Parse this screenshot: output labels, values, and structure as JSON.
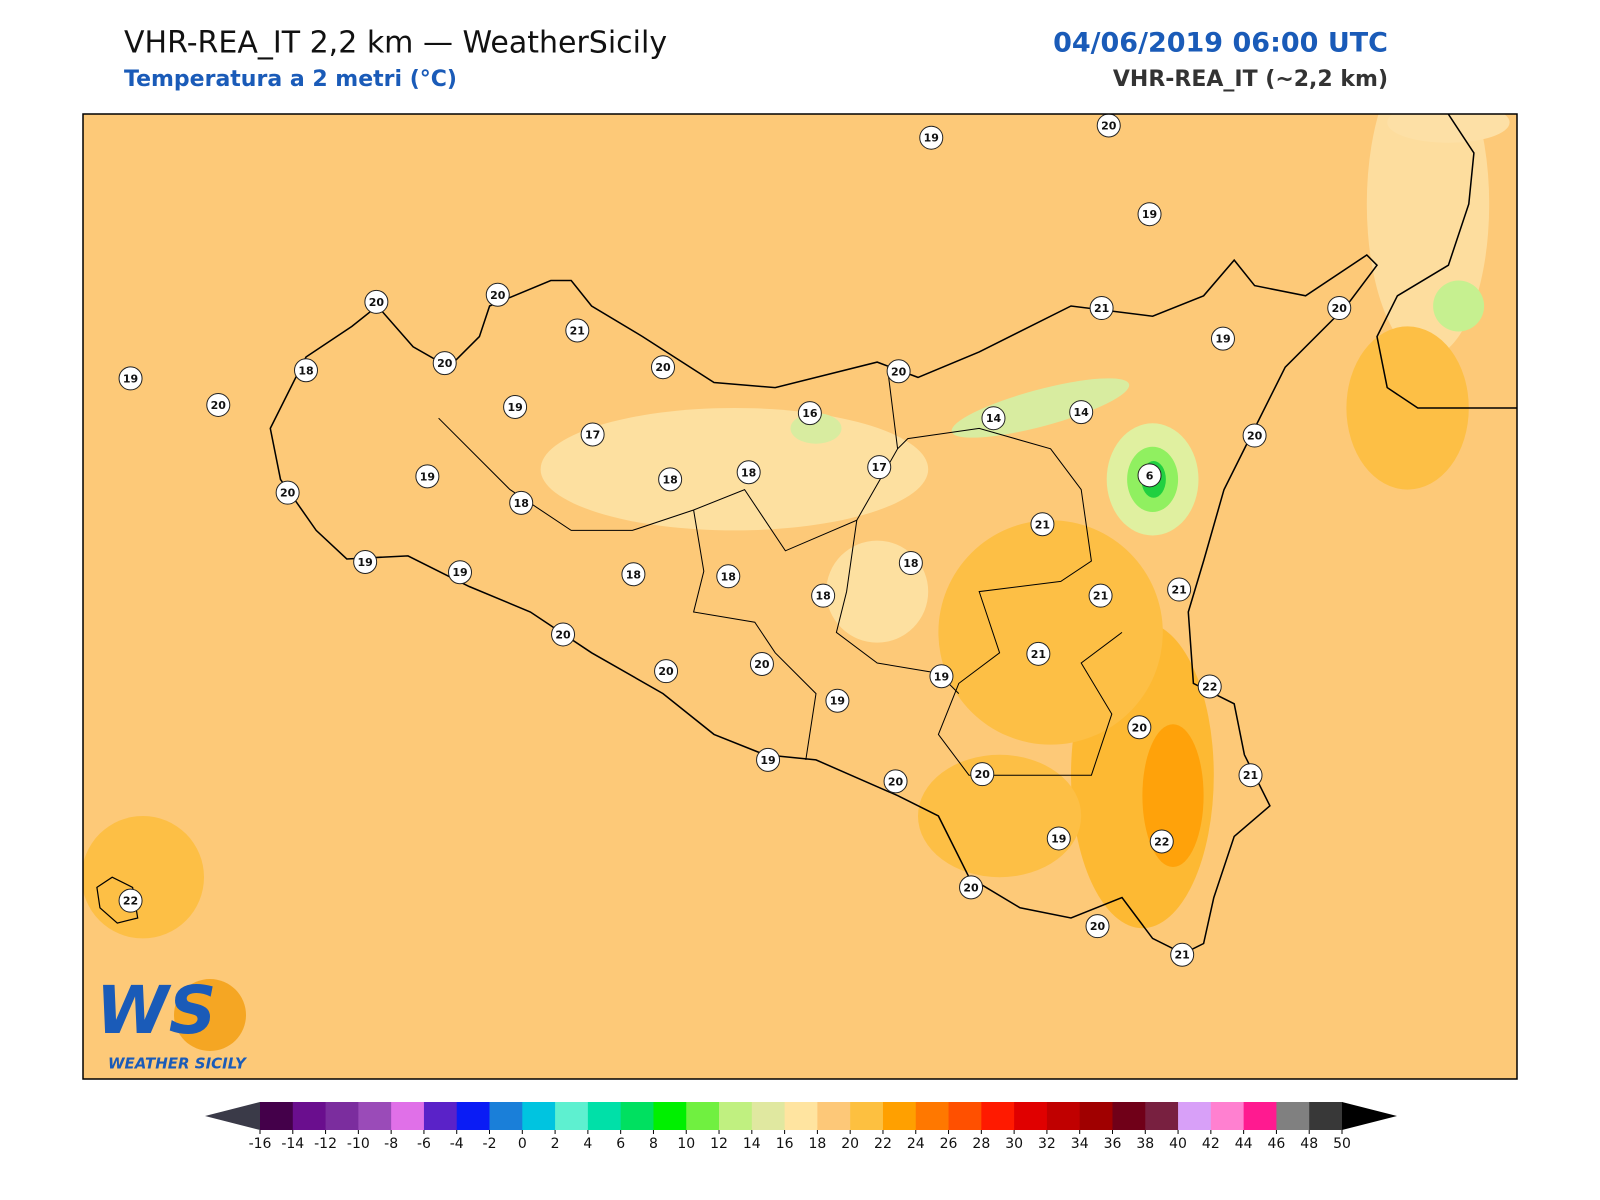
{
  "header": {
    "title": "VHR-REA_IT 2,2 km — WeatherSicily",
    "subtitle": "Temperatura a 2 metri (°C)",
    "datetime": "04/06/2019 06:00 UTC",
    "model": "VHR-REA_IT (~2,2 km)"
  },
  "map": {
    "background": "#fdc978",
    "stations": [
      19,
      20,
      19,
      20,
      20,
      21,
      21,
      20,
      19,
      19,
      18,
      20,
      20,
      20,
      20,
      19,
      17,
      16,
      14,
      14,
      20,
      19,
      18,
      18,
      17,
      6,
      20,
      18,
      21,
      19,
      19,
      18,
      18,
      18,
      18,
      21,
      21,
      20,
      20,
      20,
      21,
      19,
      19,
      22,
      20,
      19,
      20,
      20,
      21,
      19,
      22,
      20,
      20,
      21,
      22
    ]
  },
  "logo": {
    "mark": "WS",
    "name": "WEATHER SICILY"
  },
  "colorbar": {
    "ticks": [
      -16,
      -14,
      -12,
      -10,
      -8,
      -6,
      -4,
      -2,
      0,
      2,
      4,
      6,
      8,
      10,
      12,
      14,
      16,
      18,
      20,
      22,
      24,
      26,
      28,
      30,
      32,
      34,
      36,
      38,
      40,
      42,
      44,
      46,
      48,
      50
    ],
    "colors": [
      "#44004a",
      "#6a0e8e",
      "#7b2d9e",
      "#9a4bb8",
      "#e070e8",
      "#5a22c8",
      "#0a1cf5",
      "#1a7fd9",
      "#00c4e0",
      "#5ef0d0",
      "#00e0a8",
      "#00e060",
      "#00f000",
      "#70f040",
      "#c0f080",
      "#e0e8a0",
      "#ffe4a0",
      "#fdc878",
      "#fdc040",
      "#ffa000",
      "#ff7800",
      "#ff5000",
      "#ff1a00",
      "#e00000",
      "#c00000",
      "#a00000",
      "#700018",
      "#782040",
      "#d8a0f8",
      "#ff80d0",
      "#ff1a90",
      "#808080",
      "#383838"
    ],
    "under": "#3a3a48",
    "over": "#000000"
  }
}
